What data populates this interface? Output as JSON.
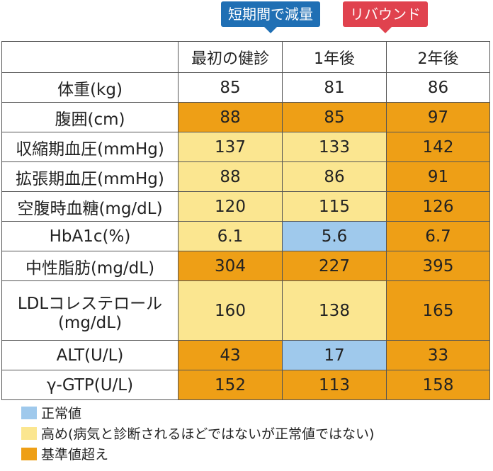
{
  "tags": {
    "short_term": "短期間で減量",
    "rebound": "リバウンド"
  },
  "colors": {
    "normal": "#9fc9ec",
    "high": "#fbe690",
    "over": "#ee9f16",
    "tag_blue": "#1f6fb4",
    "tag_red": "#e0424e"
  },
  "table": {
    "headers": [
      "",
      "最初の健診",
      "1年後",
      "2年後"
    ],
    "rows": [
      {
        "label": "体重(kg)",
        "cells": [
          {
            "v": "85",
            "s": "w"
          },
          {
            "v": "81",
            "s": "w"
          },
          {
            "v": "86",
            "s": "w"
          }
        ]
      },
      {
        "label": "腹囲(cm)",
        "cells": [
          {
            "v": "88",
            "s": "over"
          },
          {
            "v": "85",
            "s": "over"
          },
          {
            "v": "97",
            "s": "over"
          }
        ]
      },
      {
        "label": "収縮期血圧(mmHg)",
        "cells": [
          {
            "v": "137",
            "s": "high"
          },
          {
            "v": "133",
            "s": "high"
          },
          {
            "v": "142",
            "s": "over"
          }
        ]
      },
      {
        "label": "拡張期血圧(mmHg)",
        "cells": [
          {
            "v": "88",
            "s": "high"
          },
          {
            "v": "86",
            "s": "high"
          },
          {
            "v": "91",
            "s": "over"
          }
        ]
      },
      {
        "label": "空腹時血糖(mg/dL)",
        "cells": [
          {
            "v": "120",
            "s": "high"
          },
          {
            "v": "115",
            "s": "high"
          },
          {
            "v": "126",
            "s": "over"
          }
        ]
      },
      {
        "label": "HbA1c(%)",
        "cells": [
          {
            "v": "6.1",
            "s": "high"
          },
          {
            "v": "5.6",
            "s": "normal"
          },
          {
            "v": "6.7",
            "s": "over"
          }
        ]
      },
      {
        "label": "中性脂肪(mg/dL)",
        "cells": [
          {
            "v": "304",
            "s": "over"
          },
          {
            "v": "227",
            "s": "over"
          },
          {
            "v": "395",
            "s": "over"
          }
        ]
      },
      {
        "label": "LDLコレステロール",
        "label2": "(mg/dL)",
        "cells": [
          {
            "v": "160",
            "s": "high"
          },
          {
            "v": "138",
            "s": "high"
          },
          {
            "v": "165",
            "s": "over"
          }
        ]
      },
      {
        "label": "ALT(U/L)",
        "cells": [
          {
            "v": "43",
            "s": "over"
          },
          {
            "v": "17",
            "s": "normal"
          },
          {
            "v": "33",
            "s": "over"
          }
        ]
      },
      {
        "label": "γ-GTP(U/L)",
        "cells": [
          {
            "v": "152",
            "s": "over"
          },
          {
            "v": "113",
            "s": "over"
          },
          {
            "v": "158",
            "s": "over"
          }
        ]
      }
    ]
  },
  "legend": [
    {
      "label": "正常値",
      "s": "normal"
    },
    {
      "label": "高め(病気と診断されるほどではないが正常値ではない)",
      "s": "high"
    },
    {
      "label": "基準値超え",
      "s": "over"
    }
  ]
}
